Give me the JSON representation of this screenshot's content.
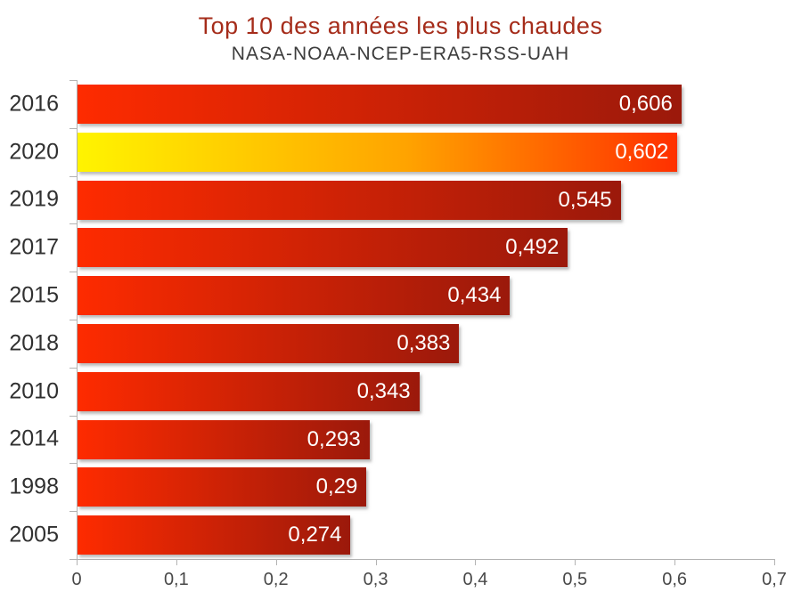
{
  "chart_data": {
    "type": "bar",
    "orientation": "horizontal",
    "title": "Top 10 des années les plus chaudes",
    "subtitle": "NASA-NOAA-NCEP-ERA5-RSS-UAH",
    "categories": [
      "2016",
      "2020",
      "2019",
      "2017",
      "2015",
      "2018",
      "2010",
      "2014",
      "1998",
      "2005"
    ],
    "values": [
      0.606,
      0.602,
      0.545,
      0.492,
      0.434,
      0.383,
      0.343,
      0.293,
      0.29,
      0.274
    ],
    "value_labels": [
      "0,606",
      "0,602",
      "0,545",
      "0,492",
      "0,434",
      "0,383",
      "0,343",
      "0,293",
      "0,29",
      "0,274"
    ],
    "highlight_category": "2020",
    "xlabel": "",
    "ylabel": "",
    "xlim": [
      0,
      0.7
    ],
    "x_tick_labels": [
      "0",
      "0,1",
      "0,2",
      "0,3",
      "0,4",
      "0,5",
      "0,6",
      "0,7"
    ],
    "x_tick_values": [
      0,
      0.1,
      0.2,
      0.3,
      0.4,
      0.5,
      0.6,
      0.7
    ],
    "grid": "off",
    "legend": "none",
    "colors": {
      "bar_gradient_start": "#FE2B00",
      "bar_gradient_end": "#9B190B",
      "highlight_gradient_start": "#FFF400",
      "highlight_gradient_mid": "#FFA300",
      "highlight_gradient_end": "#FF3000",
      "title": "#A52C1A",
      "subtitle": "#3C3C3C",
      "category_label": "#303030",
      "value_label": "#FFFFFF",
      "axis": "#B3B3B3",
      "tick_label": "#484848"
    }
  }
}
